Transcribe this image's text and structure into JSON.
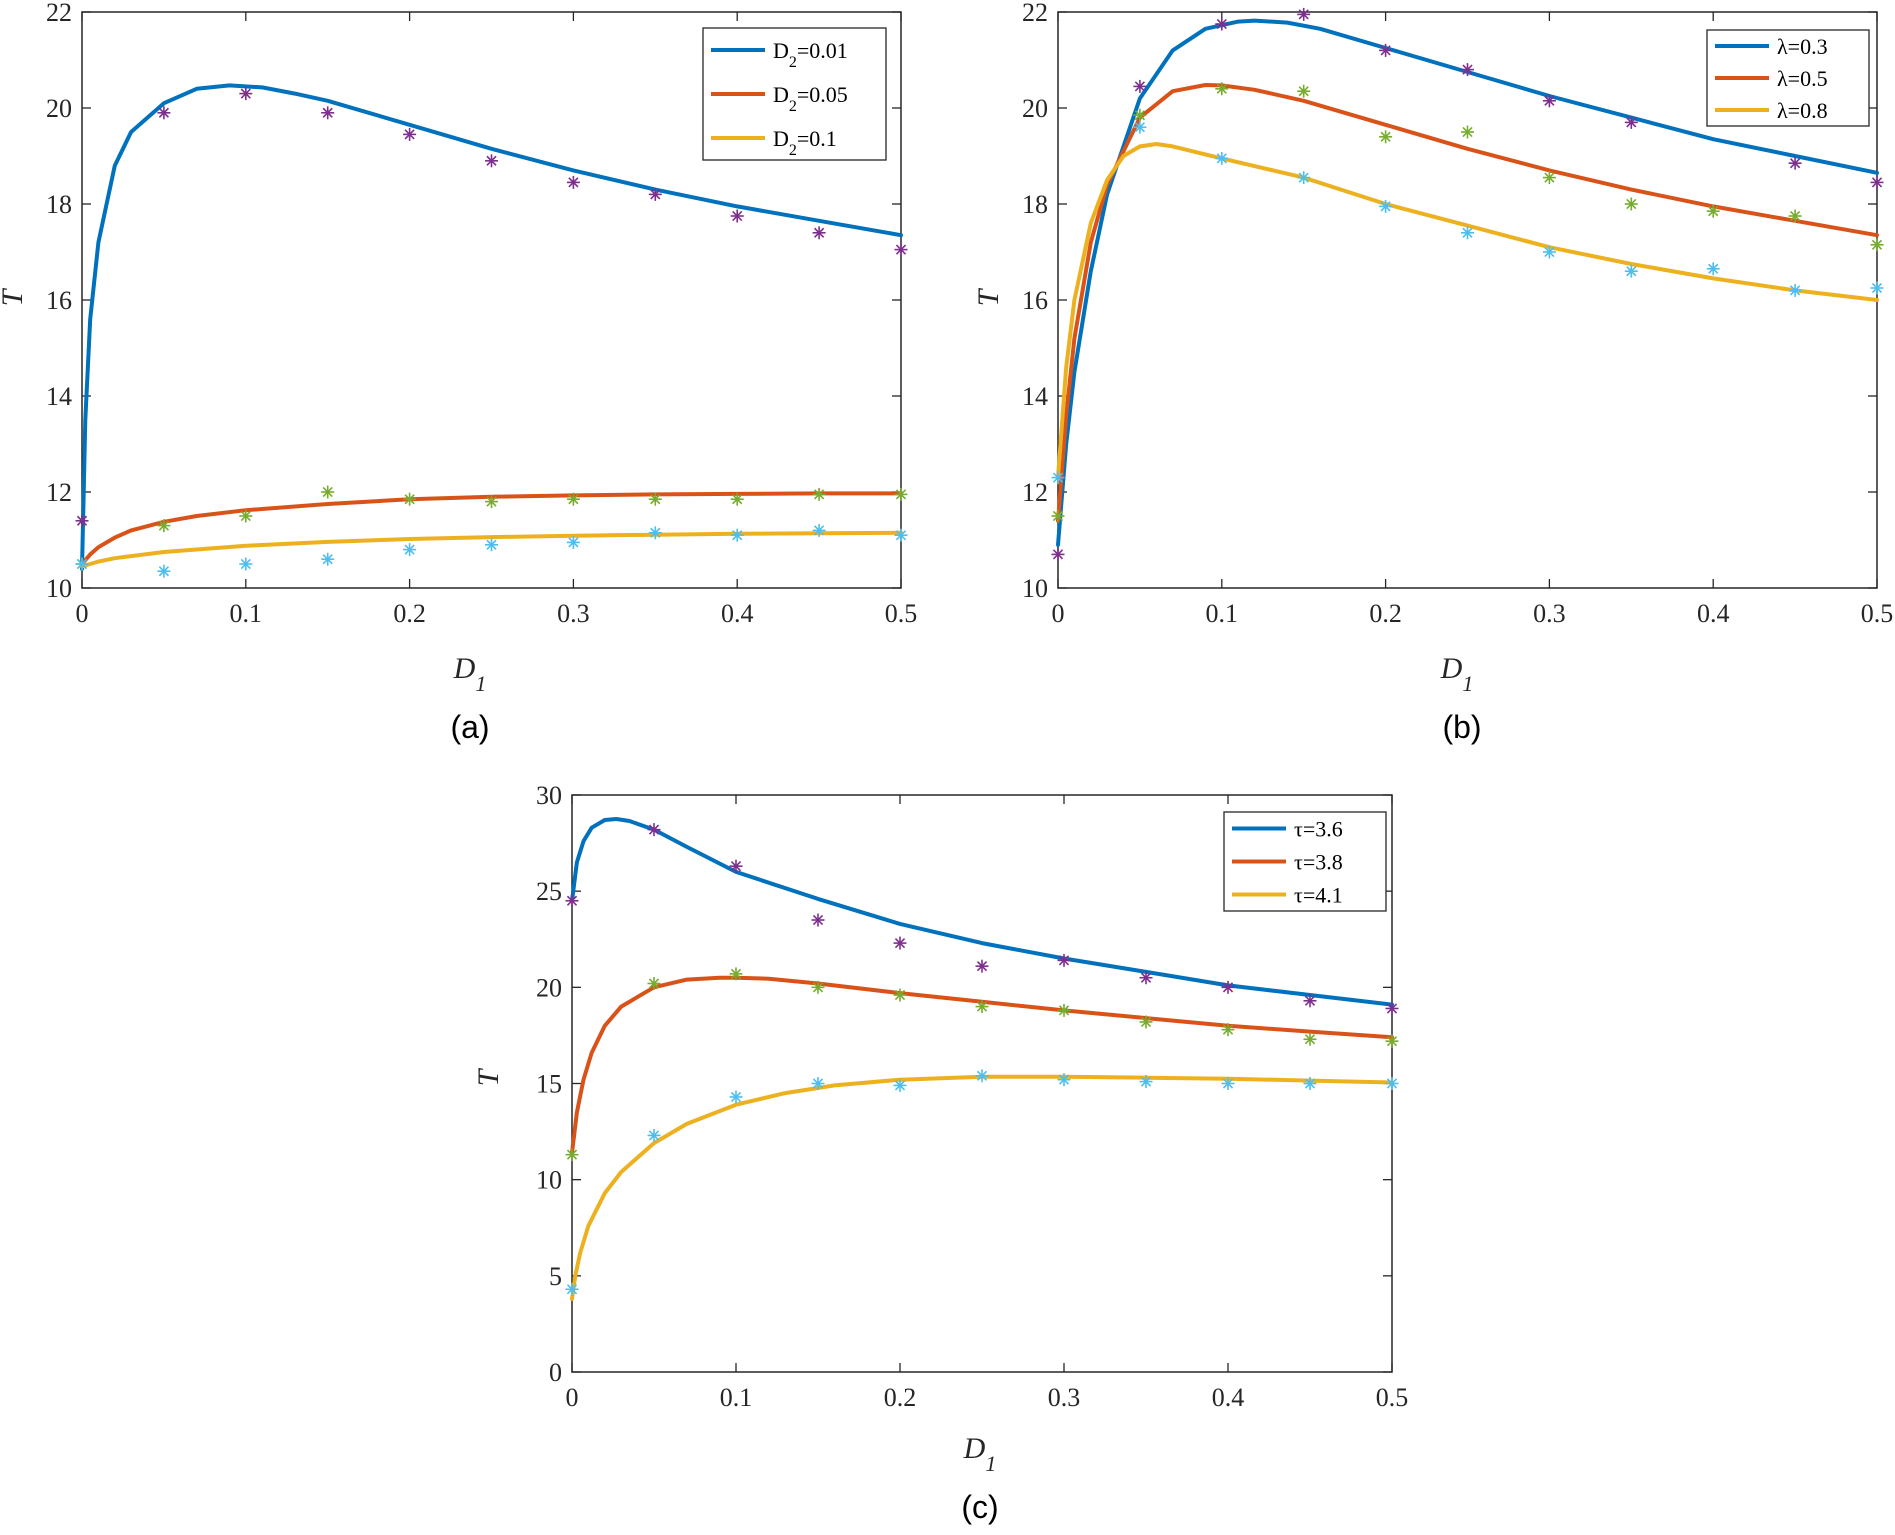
{
  "chart_data": [
    {
      "id": "a",
      "type": "line",
      "caption": "(a)",
      "xlabel": "D",
      "xlabel_sub": "1",
      "ylabel": "T",
      "xlim": [
        0,
        0.5
      ],
      "ylim": [
        10,
        22
      ],
      "xticks": [
        0,
        0.1,
        0.2,
        0.3,
        0.4,
        0.5
      ],
      "xtick_labels": [
        "0",
        "0.1",
        "0.2",
        "0.3",
        "0.4",
        "0.5"
      ],
      "yticks": [
        10,
        12,
        14,
        16,
        18,
        20,
        22
      ],
      "ytick_labels": [
        "10",
        "12",
        "14",
        "16",
        "18",
        "20",
        "22"
      ],
      "legend_position": "top-right",
      "series": [
        {
          "name": "D2=0.01",
          "legend_label": "D",
          "legend_sub": "2",
          "legend_value": "=0.01",
          "color": "#0072BD",
          "marker_color": "#7E2F8E",
          "line": {
            "x": [
              0,
              0.002,
              0.005,
              0.01,
              0.02,
              0.03,
              0.05,
              0.07,
              0.09,
              0.11,
              0.13,
              0.15,
              0.2,
              0.25,
              0.3,
              0.35,
              0.4,
              0.45,
              0.5
            ],
            "y": [
              10.4,
              13.5,
              15.6,
              17.2,
              18.8,
              19.5,
              20.1,
              20.4,
              20.47,
              20.43,
              20.3,
              20.15,
              19.65,
              19.15,
              18.7,
              18.3,
              17.95,
              17.65,
              17.35
            ]
          },
          "markers": {
            "x": [
              0,
              0.05,
              0.1,
              0.15,
              0.2,
              0.25,
              0.3,
              0.35,
              0.4,
              0.45,
              0.5
            ],
            "y": [
              11.4,
              19.9,
              20.3,
              19.9,
              19.45,
              18.9,
              18.45,
              18.2,
              17.75,
              17.4,
              17.05
            ]
          }
        },
        {
          "name": "D2=0.05",
          "legend_label": "D",
          "legend_sub": "2",
          "legend_value": "=0.05",
          "color": "#D95319",
          "marker_color": "#77AC30",
          "line": {
            "x": [
              0,
              0.005,
              0.01,
              0.02,
              0.03,
              0.05,
              0.07,
              0.1,
              0.15,
              0.2,
              0.25,
              0.3,
              0.35,
              0.4,
              0.45,
              0.5
            ],
            "y": [
              10.5,
              10.7,
              10.85,
              11.05,
              11.2,
              11.38,
              11.5,
              11.62,
              11.75,
              11.85,
              11.9,
              11.93,
              11.95,
              11.96,
              11.97,
              11.97
            ]
          },
          "markers": {
            "x": [
              0,
              0.05,
              0.1,
              0.15,
              0.2,
              0.25,
              0.3,
              0.35,
              0.4,
              0.45,
              0.5
            ],
            "y": [
              10.5,
              11.3,
              11.5,
              12.0,
              11.85,
              11.8,
              11.85,
              11.85,
              11.85,
              11.95,
              11.95
            ]
          }
        },
        {
          "name": "D2=0.1",
          "legend_label": "D",
          "legend_sub": "2",
          "legend_value": "=0.1",
          "color": "#EDB120",
          "marker_color": "#4DBEEE",
          "line": {
            "x": [
              0,
              0.005,
              0.01,
              0.02,
              0.05,
              0.1,
              0.15,
              0.2,
              0.25,
              0.3,
              0.35,
              0.4,
              0.45,
              0.5
            ],
            "y": [
              10.45,
              10.5,
              10.55,
              10.62,
              10.75,
              10.88,
              10.96,
              11.02,
              11.06,
              11.09,
              11.11,
              11.13,
              11.14,
              11.15
            ]
          },
          "markers": {
            "x": [
              0,
              0.05,
              0.1,
              0.15,
              0.2,
              0.25,
              0.3,
              0.35,
              0.4,
              0.45,
              0.5
            ],
            "y": [
              10.5,
              10.35,
              10.5,
              10.6,
              10.8,
              10.9,
              10.95,
              11.15,
              11.1,
              11.2,
              11.1
            ]
          }
        }
      ]
    },
    {
      "id": "b",
      "type": "line",
      "caption": "(b)",
      "xlabel": "D",
      "xlabel_sub": "1",
      "ylabel": "T",
      "xlim": [
        0,
        0.5
      ],
      "ylim": [
        10,
        22
      ],
      "xticks": [
        0,
        0.1,
        0.2,
        0.3,
        0.4,
        0.5
      ],
      "xtick_labels": [
        "0",
        "0.1",
        "0.2",
        "0.3",
        "0.4",
        "0.5"
      ],
      "yticks": [
        10,
        12,
        14,
        16,
        18,
        20,
        22
      ],
      "ytick_labels": [
        "10",
        "12",
        "14",
        "16",
        "18",
        "20",
        "22"
      ],
      "legend_position": "top-right",
      "series": [
        {
          "name": "λ=0.3",
          "legend_label": "λ=0.3",
          "color": "#0072BD",
          "marker_color": "#7E2F8E",
          "line": {
            "x": [
              0,
              0.005,
              0.01,
              0.02,
              0.03,
              0.05,
              0.07,
              0.09,
              0.11,
              0.12,
              0.14,
              0.16,
              0.2,
              0.25,
              0.3,
              0.35,
              0.4,
              0.45,
              0.5
            ],
            "y": [
              10.9,
              13.0,
              14.5,
              16.6,
              18.2,
              20.2,
              21.2,
              21.65,
              21.8,
              21.82,
              21.78,
              21.65,
              21.25,
              20.75,
              20.25,
              19.8,
              19.35,
              19.0,
              18.65
            ]
          },
          "markers": {
            "x": [
              0,
              0.05,
              0.1,
              0.15,
              0.2,
              0.25,
              0.3,
              0.35,
              0.4,
              0.45,
              0.5
            ],
            "y": [
              10.7,
              20.45,
              21.75,
              21.95,
              21.2,
              20.8,
              20.15,
              19.7,
              null,
              18.85,
              18.45
            ]
          }
        },
        {
          "name": "λ=0.5",
          "legend_label": "λ=0.5",
          "color": "#D95319",
          "marker_color": "#77AC30",
          "line": {
            "x": [
              0,
              0.005,
              0.01,
              0.02,
              0.03,
              0.05,
              0.07,
              0.09,
              0.1,
              0.12,
              0.15,
              0.2,
              0.25,
              0.3,
              0.35,
              0.4,
              0.45,
              0.5
            ],
            "y": [
              11.4,
              13.6,
              15.2,
              17.2,
              18.4,
              19.8,
              20.35,
              20.48,
              20.47,
              20.38,
              20.15,
              19.65,
              19.15,
              18.7,
              18.3,
              17.95,
              17.65,
              17.35
            ]
          },
          "markers": {
            "x": [
              0,
              0.05,
              0.1,
              0.15,
              0.2,
              0.25,
              0.3,
              0.35,
              0.4,
              0.45,
              0.5
            ],
            "y": [
              11.5,
              19.85,
              20.4,
              20.35,
              19.4,
              19.5,
              18.55,
              18.0,
              17.85,
              17.75,
              17.15
            ]
          }
        },
        {
          "name": "λ=0.8",
          "legend_label": "λ=0.8",
          "color": "#EDB120",
          "marker_color": "#4DBEEE",
          "line": {
            "x": [
              0,
              0.005,
              0.01,
              0.02,
              0.03,
              0.04,
              0.05,
              0.06,
              0.07,
              0.1,
              0.15,
              0.2,
              0.25,
              0.3,
              0.35,
              0.4,
              0.45,
              0.5
            ],
            "y": [
              12.3,
              14.6,
              16.0,
              17.6,
              18.5,
              19.0,
              19.2,
              19.25,
              19.2,
              18.95,
              18.55,
              18.0,
              17.55,
              17.1,
              16.75,
              16.45,
              16.2,
              16.0
            ]
          },
          "markers": {
            "x": [
              0,
              0.05,
              0.1,
              0.15,
              0.2,
              0.25,
              0.3,
              0.35,
              0.4,
              0.45,
              0.5
            ],
            "y": [
              12.3,
              19.6,
              18.95,
              18.55,
              17.95,
              17.4,
              17.0,
              16.6,
              16.65,
              16.2,
              16.25
            ]
          }
        }
      ]
    },
    {
      "id": "c",
      "type": "line",
      "caption": "(c)",
      "xlabel": "D",
      "xlabel_sub": "1",
      "ylabel": "T",
      "xlim": [
        0,
        0.5
      ],
      "ylim": [
        0,
        30
      ],
      "xticks": [
        0,
        0.1,
        0.2,
        0.3,
        0.4,
        0.5
      ],
      "xtick_labels": [
        "0",
        "0.1",
        "0.2",
        "0.3",
        "0.4",
        "0.5"
      ],
      "yticks": [
        0,
        5,
        10,
        15,
        20,
        25,
        30
      ],
      "ytick_labels": [
        "0",
        "5",
        "10",
        "15",
        "20",
        "25",
        "30"
      ],
      "legend_position": "top-right",
      "series": [
        {
          "name": "τ=3.6",
          "legend_label": "τ=3.6",
          "color": "#0072BD",
          "marker_color": "#7E2F8E",
          "line": {
            "x": [
              0,
              0.003,
              0.007,
              0.012,
              0.02,
              0.027,
              0.035,
              0.05,
              0.07,
              0.1,
              0.15,
              0.2,
              0.25,
              0.3,
              0.35,
              0.4,
              0.45,
              0.5
            ],
            "y": [
              24.5,
              26.5,
              27.6,
              28.3,
              28.7,
              28.75,
              28.65,
              28.2,
              27.3,
              26.0,
              24.6,
              23.3,
              22.3,
              21.5,
              20.8,
              20.1,
              19.6,
              19.1
            ]
          },
          "markers": {
            "x": [
              0,
              0.05,
              0.1,
              0.15,
              0.2,
              0.25,
              0.3,
              0.35,
              0.4,
              0.45,
              0.5
            ],
            "y": [
              24.5,
              28.2,
              26.3,
              23.5,
              22.3,
              21.1,
              21.4,
              20.5,
              20.0,
              19.3,
              18.9
            ]
          }
        },
        {
          "name": "τ=3.8",
          "legend_label": "τ=3.8",
          "color": "#D95319",
          "marker_color": "#77AC30",
          "line": {
            "x": [
              0,
              0.003,
              0.007,
              0.012,
              0.02,
              0.03,
              0.05,
              0.07,
              0.09,
              0.1,
              0.12,
              0.15,
              0.2,
              0.25,
              0.3,
              0.35,
              0.4,
              0.45,
              0.5
            ],
            "y": [
              11.4,
              13.5,
              15.2,
              16.6,
              18.0,
              19.0,
              20.0,
              20.4,
              20.5,
              20.5,
              20.45,
              20.2,
              19.7,
              19.25,
              18.8,
              18.4,
              18.0,
              17.7,
              17.4
            ]
          },
          "markers": {
            "x": [
              0,
              0.05,
              0.1,
              0.15,
              0.2,
              0.25,
              0.3,
              0.35,
              0.4,
              0.45,
              0.5
            ],
            "y": [
              11.3,
              20.2,
              20.7,
              20.0,
              19.6,
              19.0,
              18.8,
              18.2,
              17.8,
              17.3,
              17.2
            ]
          }
        },
        {
          "name": "τ=4.1",
          "legend_label": "τ=4.1",
          "color": "#EDB120",
          "marker_color": "#4DBEEE",
          "line": {
            "x": [
              0,
              0.002,
              0.005,
              0.01,
              0.02,
              0.03,
              0.05,
              0.07,
              0.1,
              0.13,
              0.16,
              0.2,
              0.25,
              0.3,
              0.35,
              0.4,
              0.45,
              0.5
            ],
            "y": [
              3.8,
              5.0,
              6.2,
              7.6,
              9.3,
              10.4,
              11.9,
              12.9,
              13.9,
              14.5,
              14.9,
              15.2,
              15.35,
              15.35,
              15.3,
              15.25,
              15.15,
              15.05
            ]
          },
          "markers": {
            "x": [
              0,
              0.05,
              0.1,
              0.15,
              0.2,
              0.25,
              0.3,
              0.35,
              0.4,
              0.45,
              0.5
            ],
            "y": [
              4.3,
              12.3,
              14.3,
              15.0,
              14.9,
              15.4,
              15.2,
              15.1,
              15.0,
              15.0,
              15.0
            ]
          }
        }
      ]
    }
  ]
}
